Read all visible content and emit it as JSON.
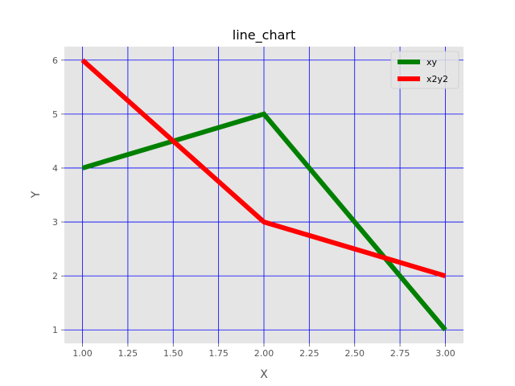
{
  "chart_data": {
    "type": "line",
    "title": "line_chart",
    "xlabel": "X",
    "ylabel": "Y",
    "xlim": [
      0.9,
      3.1
    ],
    "ylim": [
      0.75,
      6.25
    ],
    "xticks": [
      1.0,
      1.25,
      1.5,
      1.75,
      2.0,
      2.25,
      2.5,
      2.75,
      3.0
    ],
    "xtick_labels": [
      "1.00",
      "1.25",
      "1.50",
      "1.75",
      "2.00",
      "2.25",
      "2.50",
      "2.75",
      "3.00"
    ],
    "yticks": [
      1,
      2,
      3,
      4,
      5,
      6
    ],
    "ytick_labels": [
      "1",
      "2",
      "3",
      "4",
      "5",
      "6"
    ],
    "grid": true,
    "grid_color": "#0000ff",
    "plot_background": "#e5e5e5",
    "legend_position": "top-right",
    "series": [
      {
        "name": "xy",
        "color": "#008000",
        "x": [
          1,
          2,
          3
        ],
        "y": [
          4,
          5,
          1
        ]
      },
      {
        "name": "x2y2",
        "color": "#ff0000",
        "x": [
          1,
          2,
          3
        ],
        "y": [
          6,
          3,
          2
        ]
      }
    ]
  }
}
